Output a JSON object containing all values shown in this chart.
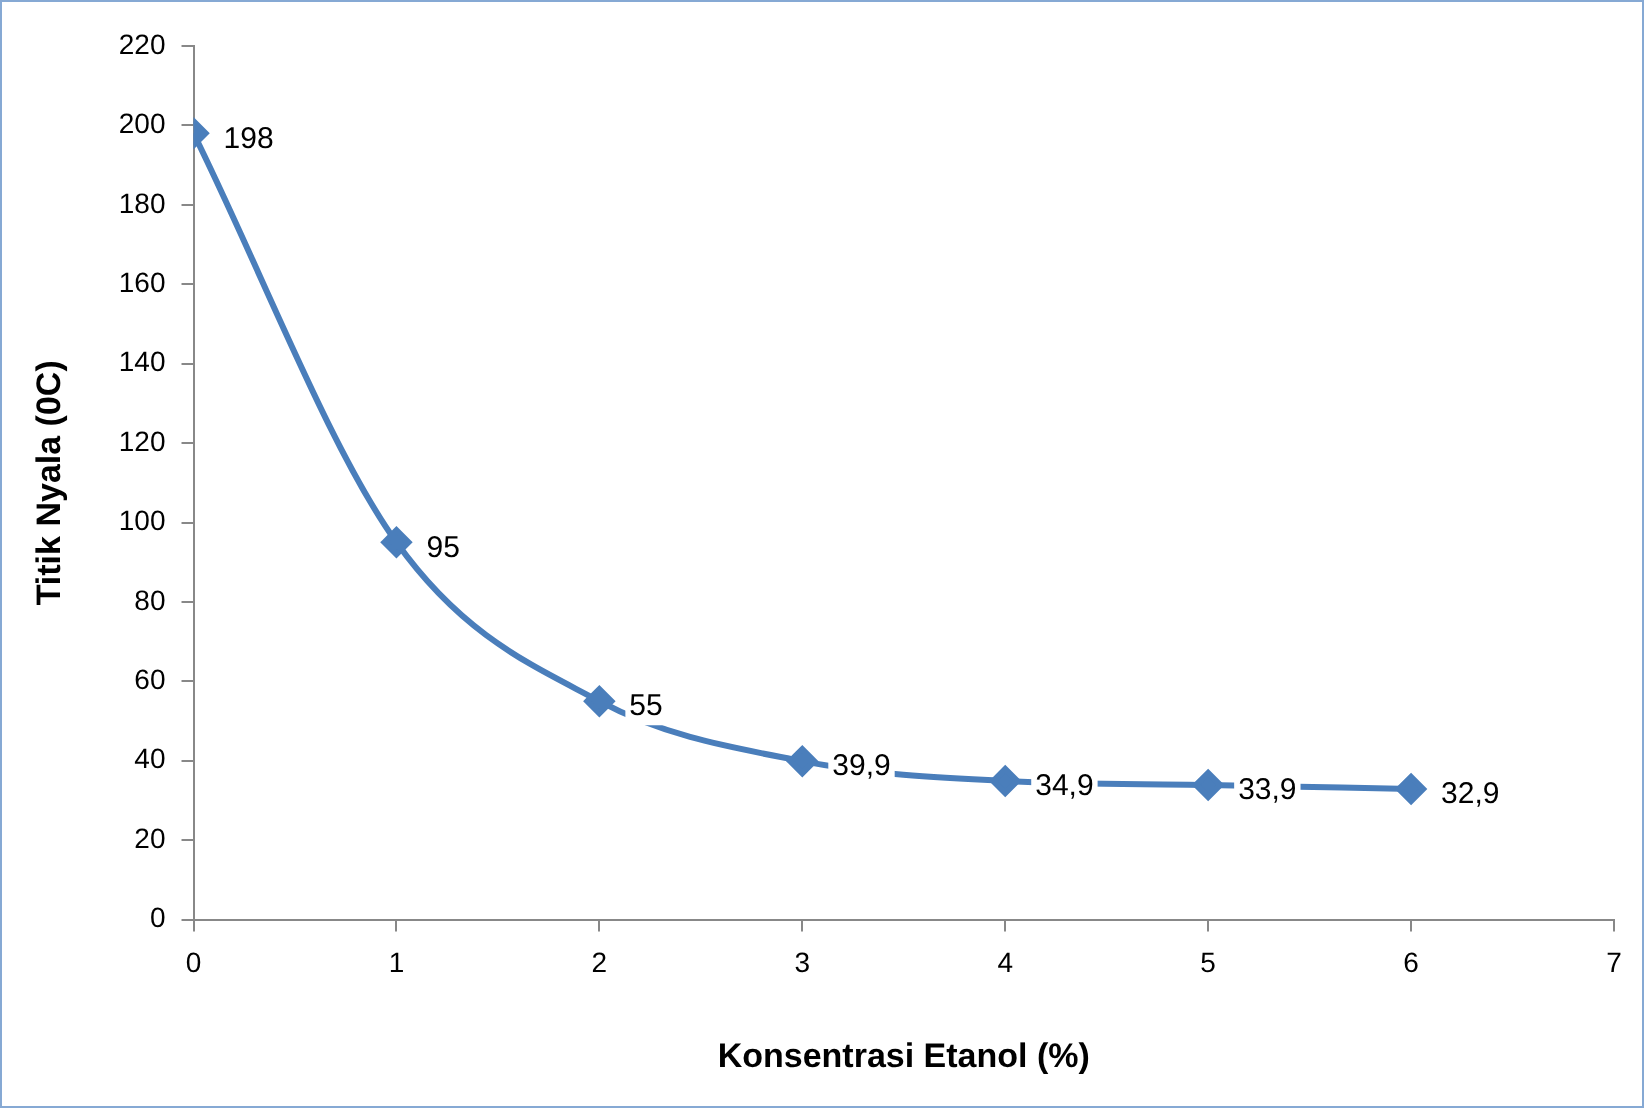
{
  "chart_data": {
    "type": "line",
    "xlabel": "Konsentrasi Etanol (%)",
    "ylabel": "Titik Nyala (0C)",
    "x": [
      0,
      1,
      2,
      3,
      4,
      5,
      6
    ],
    "values": [
      198,
      95,
      55,
      39.9,
      34.9,
      33.9,
      32.9
    ],
    "value_labels": [
      "198",
      "95",
      "55",
      "39,9",
      "34,9",
      "33,9",
      "32,9"
    ],
    "color": "#4a7ebb",
    "xlim": [
      0,
      7
    ],
    "xticks": [
      0,
      1,
      2,
      3,
      4,
      5,
      6,
      7
    ],
    "ylim": [
      0,
      220
    ],
    "yticks": [
      0,
      20,
      40,
      60,
      80,
      100,
      120,
      140,
      160,
      180,
      200,
      220
    ],
    "grid": false,
    "legend": false,
    "marker": "diamond",
    "line_style": "solid"
  }
}
